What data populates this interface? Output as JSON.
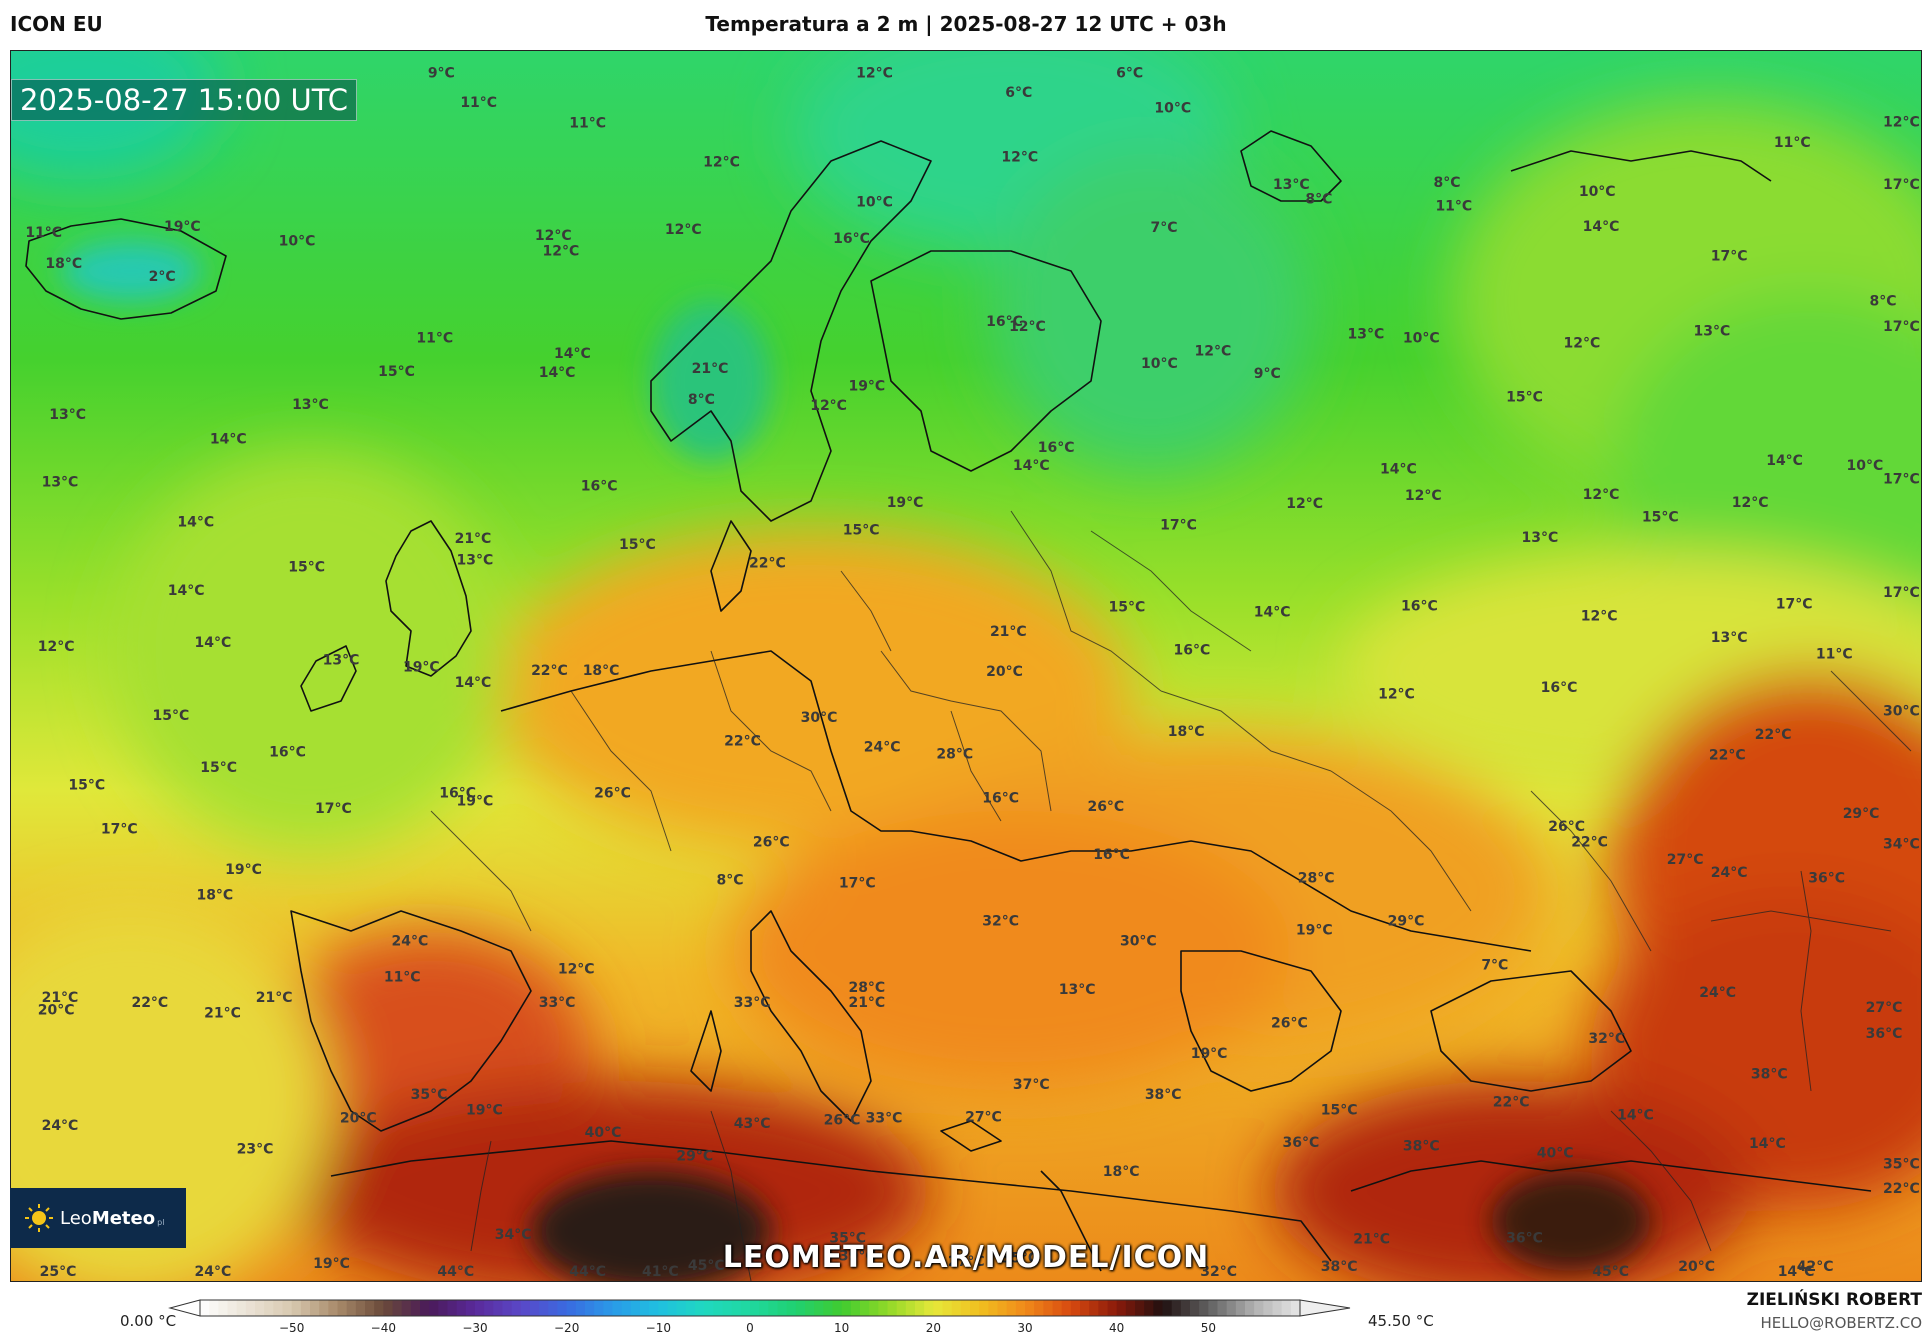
{
  "header": {
    "model": "ICON EU",
    "title": "Temperatura a 2 m | 2025-08-27 12 UTC + 03h"
  },
  "map": {
    "timestamp": "2025-08-27 15:00 UTC",
    "website": "LEOMETEO.AR/MODEL/ICON",
    "logo": {
      "leo": "Leo",
      "meteo": "Meteo",
      "suffix": "pl"
    },
    "temperature_labels": [
      {
        "t": "11°C",
        "x": 0.75,
        "y": 18.2
      },
      {
        "t": "19°C",
        "x": 8.0,
        "y": 17.6
      },
      {
        "t": "10°C",
        "x": 14.0,
        "y": 19.0
      },
      {
        "t": "2°C",
        "x": 7.2,
        "y": 22.5
      },
      {
        "t": "18°C",
        "x": 1.8,
        "y": 21.2
      },
      {
        "t": "9°C",
        "x": 21.8,
        "y": 2.6
      },
      {
        "t": "11°C",
        "x": 23.5,
        "y": 5.5
      },
      {
        "t": "11°C",
        "x": 29.2,
        "y": 7.5
      },
      {
        "t": "12°C",
        "x": 36.2,
        "y": 11.3
      },
      {
        "t": "12°C",
        "x": 44.2,
        "y": 2.6
      },
      {
        "t": "6°C",
        "x": 52.0,
        "y": 4.5
      },
      {
        "t": "6°C",
        "x": 57.8,
        "y": 2.6
      },
      {
        "t": "10°C",
        "x": 59.8,
        "y": 6.0
      },
      {
        "t": "12°C",
        "x": 51.8,
        "y": 10.8
      },
      {
        "t": "10°C",
        "x": 44.2,
        "y": 15.2
      },
      {
        "t": "16°C",
        "x": 43.0,
        "y": 18.8
      },
      {
        "t": "7°C",
        "x": 59.6,
        "y": 17.7
      },
      {
        "t": "12°C",
        "x": 34.2,
        "y": 17.9
      },
      {
        "t": "12°C",
        "x": 27.4,
        "y": 18.5
      },
      {
        "t": "12°C",
        "x": 27.8,
        "y": 20.0
      },
      {
        "t": "11°C",
        "x": 21.2,
        "y": 28.5
      },
      {
        "t": "14°C",
        "x": 28.4,
        "y": 30.0
      },
      {
        "t": "14°C",
        "x": 27.6,
        "y": 31.9
      },
      {
        "t": "15°C",
        "x": 19.2,
        "y": 31.8
      },
      {
        "t": "13°C",
        "x": 14.7,
        "y": 35.0
      },
      {
        "t": "13°C",
        "x": 2.0,
        "y": 36.0
      },
      {
        "t": "14°C",
        "x": 10.4,
        "y": 38.4
      },
      {
        "t": "13°C",
        "x": 1.6,
        "y": 42.6
      },
      {
        "t": "14°C",
        "x": 8.7,
        "y": 46.5
      },
      {
        "t": "16°C",
        "x": 29.8,
        "y": 43.0
      },
      {
        "t": "15°C",
        "x": 31.8,
        "y": 48.7
      },
      {
        "t": "21°C",
        "x": 23.2,
        "y": 48.1
      },
      {
        "t": "13°C",
        "x": 23.3,
        "y": 50.2
      },
      {
        "t": "15°C",
        "x": 14.5,
        "y": 50.9
      },
      {
        "t": "14°C",
        "x": 8.2,
        "y": 53.2
      },
      {
        "t": "14°C",
        "x": 9.6,
        "y": 58.3
      },
      {
        "t": "12°C",
        "x": 1.4,
        "y": 58.7
      },
      {
        "t": "13°C",
        "x": 16.3,
        "y": 60.0
      },
      {
        "t": "19°C",
        "x": 20.5,
        "y": 60.7
      },
      {
        "t": "14°C",
        "x": 23.2,
        "y": 62.2
      },
      {
        "t": "22°C",
        "x": 27.2,
        "y": 61.0
      },
      {
        "t": "18°C",
        "x": 29.9,
        "y": 61.0
      },
      {
        "t": "15°C",
        "x": 7.4,
        "y": 65.4
      },
      {
        "t": "15°C",
        "x": 9.9,
        "y": 70.5
      },
      {
        "t": "16°C",
        "x": 13.5,
        "y": 69.0
      },
      {
        "t": "15°C",
        "x": 3.0,
        "y": 72.2
      },
      {
        "t": "17°C",
        "x": 15.9,
        "y": 74.5
      },
      {
        "t": "17°C",
        "x": 4.7,
        "y": 76.5
      },
      {
        "t": "16°C",
        "x": 22.4,
        "y": 73.0
      },
      {
        "t": "19°C",
        "x": 23.3,
        "y": 73.8
      },
      {
        "t": "26°C",
        "x": 30.5,
        "y": 73.0
      },
      {
        "t": "19°C",
        "x": 11.2,
        "y": 80.5
      },
      {
        "t": "18°C",
        "x": 9.7,
        "y": 83.0
      },
      {
        "t": "21°C",
        "x": 1.6,
        "y": 93.0
      },
      {
        "t": "20°C",
        "x": 1.4,
        "y": 94.2
      },
      {
        "t": "22°C",
        "x": 6.3,
        "y": 93.5
      },
      {
        "t": "21°C",
        "x": 10.1,
        "y": 94.5
      },
      {
        "t": "21°C",
        "x": 12.8,
        "y": 93.0
      },
      {
        "t": "24°C",
        "x": 19.9,
        "y": 87.5
      },
      {
        "t": "11°C",
        "x": 19.5,
        "y": 91.0
      },
      {
        "t": "12°C",
        "x": 28.6,
        "y": 90.2
      },
      {
        "t": "33°C",
        "x": 27.6,
        "y": 93.5
      },
      {
        "t": "35°C",
        "x": 20.9,
        "y": 102.5
      },
      {
        "t": "19°C",
        "x": 23.8,
        "y": 104.0
      },
      {
        "t": "20°C",
        "x": 17.2,
        "y": 104.8
      },
      {
        "t": "24°C",
        "x": 1.6,
        "y": 105.5
      },
      {
        "t": "23°C",
        "x": 11.8,
        "y": 107.8
      },
      {
        "t": "40°C",
        "x": 30.0,
        "y": 106.2
      },
      {
        "t": "43°C",
        "x": 37.8,
        "y": 105.3
      },
      {
        "t": "29°C",
        "x": 34.8,
        "y": 108.5
      },
      {
        "t": "34°C",
        "x": 25.3,
        "y": 116.2
      },
      {
        "t": "44°C",
        "x": 22.3,
        "y": 119.8
      },
      {
        "t": "44°C",
        "x": 29.2,
        "y": 119.8
      },
      {
        "t": "41°C",
        "x": 33.0,
        "y": 119.8
      },
      {
        "t": "45°C",
        "x": 35.4,
        "y": 119.2
      },
      {
        "t": "35°C",
        "x": 42.8,
        "y": 116.5
      },
      {
        "t": "39°C",
        "x": 43.3,
        "y": 118.3
      },
      {
        "t": "25°C",
        "x": 1.5,
        "y": 119.8
      },
      {
        "t": "24°C",
        "x": 9.6,
        "y": 119.8
      },
      {
        "t": "19°C",
        "x": 15.8,
        "y": 119.0
      },
      {
        "t": "27°C",
        "x": 49.0,
        "y": 118.8
      },
      {
        "t": "35°C",
        "x": 51.8,
        "y": 118.5
      },
      {
        "t": "32°C",
        "x": 62.2,
        "y": 119.8
      },
      {
        "t": "38°C",
        "x": 68.5,
        "y": 119.3
      },
      {
        "t": "45°C",
        "x": 82.7,
        "y": 119.8
      },
      {
        "t": "20°C",
        "x": 87.2,
        "y": 119.3
      },
      {
        "t": "14°C",
        "x": 92.4,
        "y": 119.8
      },
      {
        "t": "42°C",
        "x": 93.4,
        "y": 119.3
      },
      {
        "t": "21°C",
        "x": 35.6,
        "y": 31.5
      },
      {
        "t": "8°C",
        "x": 35.4,
        "y": 34.5
      },
      {
        "t": "12°C",
        "x": 41.8,
        "y": 35.1
      },
      {
        "t": "19°C",
        "x": 43.8,
        "y": 33.2
      },
      {
        "t": "16°C",
        "x": 51.0,
        "y": 26.9
      },
      {
        "t": "12°C",
        "x": 52.2,
        "y": 27.4
      },
      {
        "t": "10°C",
        "x": 59.1,
        "y": 31.0
      },
      {
        "t": "12°C",
        "x": 61.9,
        "y": 29.8
      },
      {
        "t": "9°C",
        "x": 65.0,
        "y": 32.0
      },
      {
        "t": "16°C",
        "x": 53.7,
        "y": 39.2
      },
      {
        "t": "14°C",
        "x": 52.4,
        "y": 41.0
      },
      {
        "t": "19°C",
        "x": 45.8,
        "y": 44.6
      },
      {
        "t": "15°C",
        "x": 43.5,
        "y": 47.3
      },
      {
        "t": "22°C",
        "x": 38.6,
        "y": 50.5
      },
      {
        "t": "17°C",
        "x": 60.1,
        "y": 46.8
      },
      {
        "t": "15°C",
        "x": 57.4,
        "y": 54.8
      },
      {
        "t": "21°C",
        "x": 51.2,
        "y": 57.2
      },
      {
        "t": "20°C",
        "x": 51.0,
        "y": 61.1
      },
      {
        "t": "16°C",
        "x": 60.8,
        "y": 59.0
      },
      {
        "t": "14°C",
        "x": 65.0,
        "y": 55.3
      },
      {
        "t": "30°C",
        "x": 41.3,
        "y": 65.6
      },
      {
        "t": "22°C",
        "x": 37.3,
        "y": 67.9
      },
      {
        "t": "24°C",
        "x": 44.6,
        "y": 68.5
      },
      {
        "t": "28°C",
        "x": 48.4,
        "y": 69.2
      },
      {
        "t": "18°C",
        "x": 60.5,
        "y": 67.0
      },
      {
        "t": "16°C",
        "x": 50.8,
        "y": 73.5
      },
      {
        "t": "26°C",
        "x": 56.3,
        "y": 74.3
      },
      {
        "t": "26°C",
        "x": 38.8,
        "y": 77.8
      },
      {
        "t": "8°C",
        "x": 36.9,
        "y": 81.5
      },
      {
        "t": "17°C",
        "x": 43.3,
        "y": 81.8
      },
      {
        "t": "16°C",
        "x": 56.6,
        "y": 79.0
      },
      {
        "t": "32°C",
        "x": 50.8,
        "y": 85.5
      },
      {
        "t": "30°C",
        "x": 58.0,
        "y": 87.5
      },
      {
        "t": "28°C",
        "x": 43.8,
        "y": 92.0
      },
      {
        "t": "21°C",
        "x": 43.8,
        "y": 93.5
      },
      {
        "t": "33°C",
        "x": 37.8,
        "y": 93.5
      },
      {
        "t": "13°C",
        "x": 54.8,
        "y": 92.2
      },
      {
        "t": "37°C",
        "x": 52.4,
        "y": 101.5
      },
      {
        "t": "26°C",
        "x": 42.5,
        "y": 105.0
      },
      {
        "t": "33°C",
        "x": 44.7,
        "y": 104.8
      },
      {
        "t": "27°C",
        "x": 49.9,
        "y": 104.7
      },
      {
        "t": "18°C",
        "x": 57.1,
        "y": 110.0
      },
      {
        "t": "38°C",
        "x": 59.3,
        "y": 102.5
      },
      {
        "t": "13°C",
        "x": 66.0,
        "y": 13.5
      },
      {
        "t": "8°C",
        "x": 67.7,
        "y": 14.9
      },
      {
        "t": "8°C",
        "x": 74.4,
        "y": 13.3
      },
      {
        "t": "11°C",
        "x": 74.5,
        "y": 15.6
      },
      {
        "t": "10°C",
        "x": 82.0,
        "y": 14.2
      },
      {
        "t": "14°C",
        "x": 82.2,
        "y": 17.6
      },
      {
        "t": "11°C",
        "x": 92.2,
        "y": 9.4
      },
      {
        "t": "12°C",
        "x": 98.5,
        "y": 7.4
      },
      {
        "t": "17°C",
        "x": 98.6,
        "y": 13.5
      },
      {
        "t": "17°C",
        "x": 88.9,
        "y": 20.5
      },
      {
        "t": "8°C",
        "x": 97.2,
        "y": 24.9
      },
      {
        "t": "17°C",
        "x": 98.6,
        "y": 27.4
      },
      {
        "t": "13°C",
        "x": 69.9,
        "y": 28.1
      },
      {
        "t": "10°C",
        "x": 72.8,
        "y": 28.5
      },
      {
        "t": "12°C",
        "x": 81.2,
        "y": 29.0
      },
      {
        "t": "13°C",
        "x": 88.0,
        "y": 27.8
      },
      {
        "t": "15°C",
        "x": 78.2,
        "y": 34.3
      },
      {
        "t": "14°C",
        "x": 71.6,
        "y": 41.3
      },
      {
        "t": "12°C",
        "x": 66.7,
        "y": 44.7
      },
      {
        "t": "12°C",
        "x": 72.9,
        "y": 43.9
      },
      {
        "t": "12°C",
        "x": 82.2,
        "y": 43.8
      },
      {
        "t": "15°C",
        "x": 85.3,
        "y": 46.0
      },
      {
        "t": "12°C",
        "x": 90.0,
        "y": 44.6
      },
      {
        "t": "14°C",
        "x": 91.8,
        "y": 40.5
      },
      {
        "t": "10°C",
        "x": 96.0,
        "y": 41.0
      },
      {
        "t": "17°C",
        "x": 98.6,
        "y": 42.3
      },
      {
        "t": "13°C",
        "x": 79.0,
        "y": 48.0
      },
      {
        "t": "16°C",
        "x": 72.7,
        "y": 54.7
      },
      {
        "t": "12°C",
        "x": 82.1,
        "y": 55.7
      },
      {
        "t": "17°C",
        "x": 92.3,
        "y": 54.5
      },
      {
        "t": "17°C",
        "x": 98.6,
        "y": 53.4
      },
      {
        "t": "13°C",
        "x": 88.9,
        "y": 57.8
      },
      {
        "t": "11°C",
        "x": 94.4,
        "y": 59.4
      },
      {
        "t": "12°C",
        "x": 71.5,
        "y": 63.3
      },
      {
        "t": "16°C",
        "x": 80.0,
        "y": 62.7
      },
      {
        "t": "30°C",
        "x": 98.6,
        "y": 65.0
      },
      {
        "t": "22°C",
        "x": 91.2,
        "y": 67.3
      },
      {
        "t": "22°C",
        "x": 88.8,
        "y": 69.3
      },
      {
        "t": "26°C",
        "x": 80.4,
        "y": 76.3
      },
      {
        "t": "22°C",
        "x": 81.6,
        "y": 77.8
      },
      {
        "t": "29°C",
        "x": 95.8,
        "y": 75.0
      },
      {
        "t": "34°C",
        "x": 98.6,
        "y": 78.0
      },
      {
        "t": "27°C",
        "x": 86.6,
        "y": 79.5
      },
      {
        "t": "24°C",
        "x": 88.9,
        "y": 80.8
      },
      {
        "t": "36°C",
        "x": 94.0,
        "y": 81.3
      },
      {
        "t": "28°C",
        "x": 67.3,
        "y": 81.3
      },
      {
        "t": "19°C",
        "x": 67.2,
        "y": 86.4
      },
      {
        "t": "29°C",
        "x": 72.0,
        "y": 85.5
      },
      {
        "t": "7°C",
        "x": 76.9,
        "y": 89.8
      },
      {
        "t": "24°C",
        "x": 88.3,
        "y": 92.5
      },
      {
        "t": "27°C",
        "x": 97.0,
        "y": 94.0
      },
      {
        "t": "36°C",
        "x": 97.0,
        "y": 96.5
      },
      {
        "t": "26°C",
        "x": 65.9,
        "y": 95.5
      },
      {
        "t": "19°C",
        "x": 61.7,
        "y": 98.5
      },
      {
        "t": "32°C",
        "x": 82.5,
        "y": 97.0
      },
      {
        "t": "38°C",
        "x": 91.0,
        "y": 100.5
      },
      {
        "t": "15°C",
        "x": 68.5,
        "y": 104.0
      },
      {
        "t": "22°C",
        "x": 77.5,
        "y": 103.2
      },
      {
        "t": "14°C",
        "x": 84.0,
        "y": 104.5
      },
      {
        "t": "36°C",
        "x": 66.5,
        "y": 107.2
      },
      {
        "t": "38°C",
        "x": 72.8,
        "y": 107.5
      },
      {
        "t": "40°C",
        "x": 79.8,
        "y": 108.2
      },
      {
        "t": "14°C",
        "x": 90.9,
        "y": 107.3
      },
      {
        "t": "35°C",
        "x": 98.6,
        "y": 109.3
      },
      {
        "t": "22°C",
        "x": 98.6,
        "y": 111.7
      },
      {
        "t": "21°C",
        "x": 70.2,
        "y": 116.6
      },
      {
        "t": "36°C",
        "x": 78.2,
        "y": 116.5
      }
    ]
  },
  "colorbar": {
    "min_label": "0.00 °C",
    "max_label": "45.50 °C",
    "ticks": [
      "−50",
      "−40",
      "−30",
      "−20",
      "−10",
      "0",
      "10",
      "20",
      "30",
      "40",
      "50"
    ]
  },
  "credits": {
    "author": "ZIELIŃSKI ROBERT",
    "email": "HELLO@ROBERTZ.CO"
  },
  "colors": {
    "cold_cyan": "#22d3a6",
    "cool_green": "#45d12e",
    "mild_yellow": "#e6e83a",
    "warm_orange": "#f0a020",
    "hot_red": "#cc3a10",
    "extreme_dark": "#2a1a14"
  }
}
